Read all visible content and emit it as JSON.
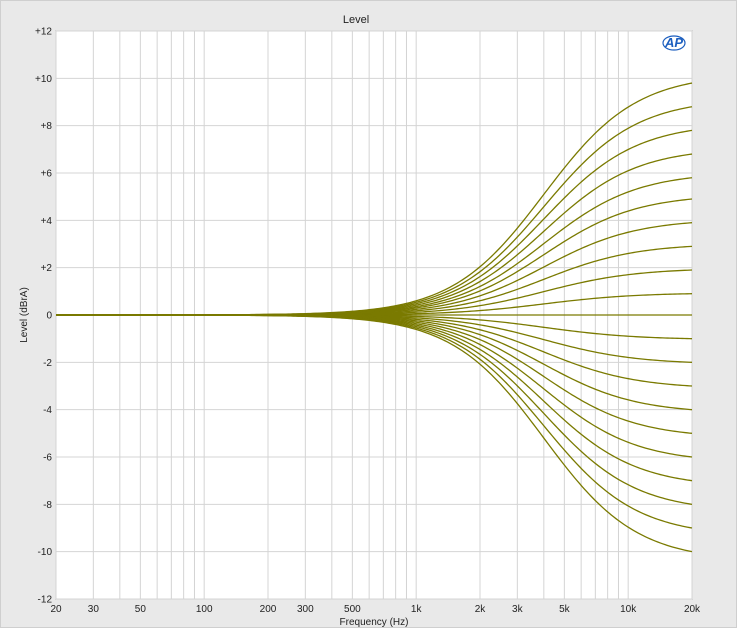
{
  "chart_data": {
    "type": "line",
    "title": "Level",
    "xlabel": "Frequency (Hz)",
    "ylabel": "Level (dBrA)",
    "x_scale": "log",
    "xlim": [
      20,
      20000
    ],
    "ylim": [
      -12,
      12
    ],
    "grid": true,
    "x_ticks": [
      {
        "value": 20,
        "label": "20"
      },
      {
        "value": 30,
        "label": "30"
      },
      {
        "value": 50,
        "label": "50"
      },
      {
        "value": 100,
        "label": "100"
      },
      {
        "value": 200,
        "label": "200"
      },
      {
        "value": 300,
        "label": "300"
      },
      {
        "value": 500,
        "label": "500"
      },
      {
        "value": 1000,
        "label": "1k"
      },
      {
        "value": 2000,
        "label": "2k"
      },
      {
        "value": 3000,
        "label": "3k"
      },
      {
        "value": 5000,
        "label": "5k"
      },
      {
        "value": 10000,
        "label": "10k"
      },
      {
        "value": 20000,
        "label": "20k"
      }
    ],
    "y_ticks": [
      {
        "value": 12,
        "label": "+12"
      },
      {
        "value": 10,
        "label": "+10"
      },
      {
        "value": 8,
        "label": "+8"
      },
      {
        "value": 6,
        "label": "+6"
      },
      {
        "value": 4,
        "label": "+4"
      },
      {
        "value": 2,
        "label": "+2"
      },
      {
        "value": 0,
        "label": "0"
      },
      {
        "value": -2,
        "label": "-2"
      },
      {
        "value": -4,
        "label": "-4"
      },
      {
        "value": -6,
        "label": "-6"
      },
      {
        "value": -8,
        "label": "-8"
      },
      {
        "value": -10,
        "label": "-10"
      },
      {
        "value": -12,
        "label": "-12"
      }
    ],
    "line_color": "#7a7a00",
    "curve_model": "high-shelf",
    "corner_frequency_hz": 4000,
    "series": [
      {
        "values_at_20k": 9.8
      },
      {
        "values_at_20k": 8.8
      },
      {
        "values_at_20k": 7.8
      },
      {
        "values_at_20k": 6.8
      },
      {
        "values_at_20k": 5.8
      },
      {
        "values_at_20k": 4.9
      },
      {
        "values_at_20k": 3.9
      },
      {
        "values_at_20k": 2.9
      },
      {
        "values_at_20k": 1.9
      },
      {
        "values_at_20k": 0.9
      },
      {
        "values_at_20k": 0.0
      },
      {
        "values_at_20k": -1.0
      },
      {
        "values_at_20k": -2.0
      },
      {
        "values_at_20k": -3.0
      },
      {
        "values_at_20k": -4.0
      },
      {
        "values_at_20k": -5.0
      },
      {
        "values_at_20k": -6.0
      },
      {
        "values_at_20k": -7.0
      },
      {
        "values_at_20k": -8.0
      },
      {
        "values_at_20k": -9.0
      },
      {
        "values_at_20k": -10.0
      }
    ]
  },
  "logo": {
    "text": "AP"
  }
}
